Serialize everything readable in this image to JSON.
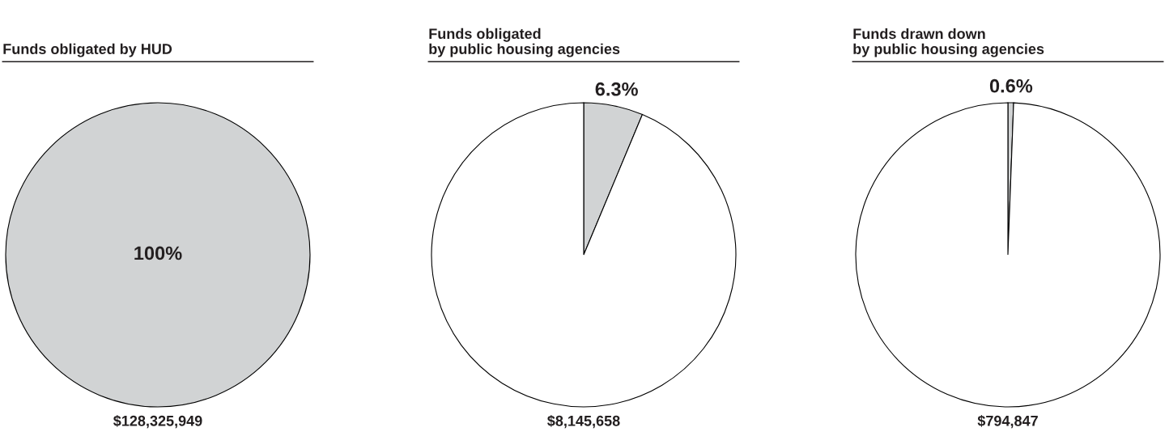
{
  "chart_data": [
    {
      "type": "pie",
      "title": "Funds obligated by HUD",
      "categories": [
        null
      ],
      "values": [
        100
      ],
      "colors": [
        "#d1d3d4"
      ],
      "value_labels": [
        "100%"
      ],
      "annotations": [
        "$128,325,949"
      ]
    },
    {
      "type": "pie",
      "title": "Funds obligated\nby public housing agencies",
      "categories": [
        null,
        null
      ],
      "values": [
        6.3,
        93.7
      ],
      "colors": [
        "#d1d3d4",
        "#ffffff"
      ],
      "value_labels": [
        "6.3%",
        null
      ],
      "annotations": [
        "$8,145,658"
      ]
    },
    {
      "type": "pie",
      "title": "Funds drawn down\nby public housing agencies",
      "categories": [
        null,
        null
      ],
      "values": [
        0.6,
        99.4
      ],
      "colors": [
        "#d1d3d4",
        "#ffffff"
      ],
      "value_labels": [
        "0.6%",
        null
      ],
      "annotations": [
        "$794,847"
      ]
    }
  ]
}
